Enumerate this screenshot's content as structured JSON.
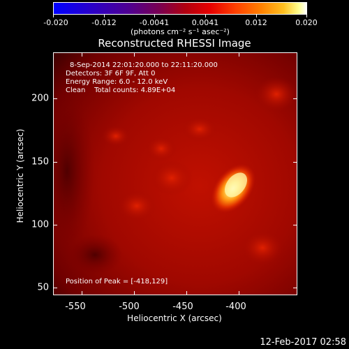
{
  "colorbar": {
    "tick_labels": [
      "-0.020",
      "-0.012",
      "-0.0041",
      "0.0041",
      "0.012",
      "0.020"
    ],
    "units": "(photons cm⁻² s⁻¹ asec⁻²)"
  },
  "title": "Reconstructed RHESSI Image",
  "info": {
    "time_range": "8-Sep-2014 22:01:20.000 to 22:11:20.000",
    "detectors": "Detectors: 3F 6F 9F, Att 0",
    "energy": "Energy Range: 6.0 - 12.0 keV",
    "clean": "Clean    Total counts: 4.89E+04",
    "peak": "Position of Peak = [-418,129]"
  },
  "axes": {
    "xlabel": "Heliocentric X (arcsec)",
    "ylabel": "Heliocentric Y (arcsec)",
    "x_ticks": [
      "-550",
      "-500",
      "-450",
      "-400"
    ],
    "y_ticks": [
      "200",
      "150",
      "100",
      "50"
    ]
  },
  "footer": "12-Feb-2017 02:58",
  "colors": {
    "peak": "#ffffc0",
    "background": "#000000",
    "axis": "#ffffff"
  }
}
